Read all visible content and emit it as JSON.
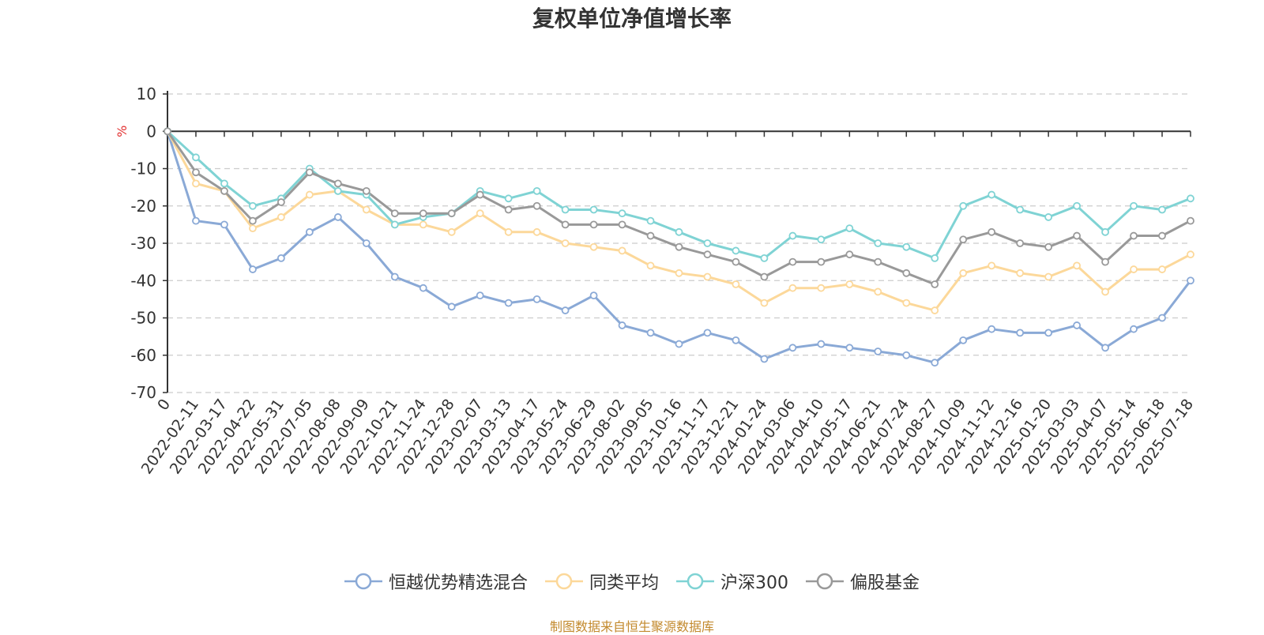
{
  "colors": {
    "series_1": "#8aa9d6",
    "series_2": "#fcd89a",
    "series_3": "#7fd3d4",
    "series_4": "#999999",
    "source_text": "#c38a2e",
    "unit_text": "#e23131"
  },
  "source_note": "制图数据来自恒生聚源数据库",
  "chart_data": {
    "type": "line",
    "title": "复权单位净值增长率",
    "ylabel": "%",
    "ylim": [
      -70,
      10
    ],
    "yticks": [
      10,
      0,
      -10,
      -20,
      -30,
      -40,
      -50,
      -60,
      -70
    ],
    "x_tick_labels": [
      "0",
      "2022-02-11",
      "2022-03-17",
      "2022-04-22",
      "2022-05-31",
      "2022-07-05",
      "2022-08-08",
      "2022-09-09",
      "2022-10-21",
      "2022-11-24",
      "2022-12-28",
      "2023-02-07",
      "2023-03-13",
      "2023-04-17",
      "2023-05-24",
      "2023-06-29",
      "2023-08-02",
      "2023-09-05",
      "2023-10-16",
      "2023-11-17",
      "2023-12-21",
      "2024-01-24",
      "2024-03-06",
      "2024-04-10",
      "2024-05-17",
      "2024-06-21",
      "2024-07-24",
      "2024-08-27",
      "2024-10-09",
      "2024-11-12",
      "2024-12-16",
      "2025-01-20",
      "2025-03-03",
      "2025-04-07",
      "2025-05-14",
      "2025-06-18",
      "2025-07-18"
    ],
    "grid": "horizontal dashed",
    "legend_position": "bottom-center",
    "series": [
      {
        "name": "恒越优势精选混合",
        "values": [
          0,
          -24,
          -25,
          -37,
          -34,
          -27,
          -23,
          -30,
          -39,
          -42,
          -47,
          -44,
          -46,
          -45,
          -48,
          -44,
          -52,
          -54,
          -57,
          -54,
          -56,
          -61,
          -58,
          -57,
          -58,
          -59,
          -60,
          -62,
          -56,
          -53,
          -54,
          -54,
          -52,
          -58,
          -53,
          -50,
          -40
        ]
      },
      {
        "name": "同类平均",
        "values": [
          0,
          -14,
          -16,
          -26,
          -23,
          -17,
          -16,
          -21,
          -25,
          -25,
          -27,
          -22,
          -27,
          -27,
          -30,
          -31,
          -32,
          -36,
          -38,
          -39,
          -41,
          -46,
          -42,
          -42,
          -41,
          -43,
          -46,
          -48,
          -38,
          -36,
          -38,
          -39,
          -36,
          -43,
          -37,
          -37,
          -33
        ]
      },
      {
        "name": "沪深300",
        "values": [
          0,
          -7,
          -14,
          -20,
          -18,
          -10,
          -16,
          -17,
          -25,
          -23,
          -22,
          -16,
          -18,
          -16,
          -21,
          -21,
          -22,
          -24,
          -27,
          -30,
          -32,
          -34,
          -28,
          -29,
          -26,
          -30,
          -31,
          -34,
          -20,
          -17,
          -21,
          -23,
          -20,
          -27,
          -20,
          -21,
          -18
        ]
      },
      {
        "name": "偏股基金",
        "values": [
          0,
          -11,
          -16,
          -24,
          -19,
          -11,
          -14,
          -16,
          -22,
          -22,
          -22,
          -17,
          -21,
          -20,
          -25,
          -25,
          -25,
          -28,
          -31,
          -33,
          -35,
          -39,
          -35,
          -35,
          -33,
          -35,
          -38,
          -41,
          -29,
          -27,
          -30,
          -31,
          -28,
          -35,
          -28,
          -28,
          -24
        ]
      }
    ]
  }
}
